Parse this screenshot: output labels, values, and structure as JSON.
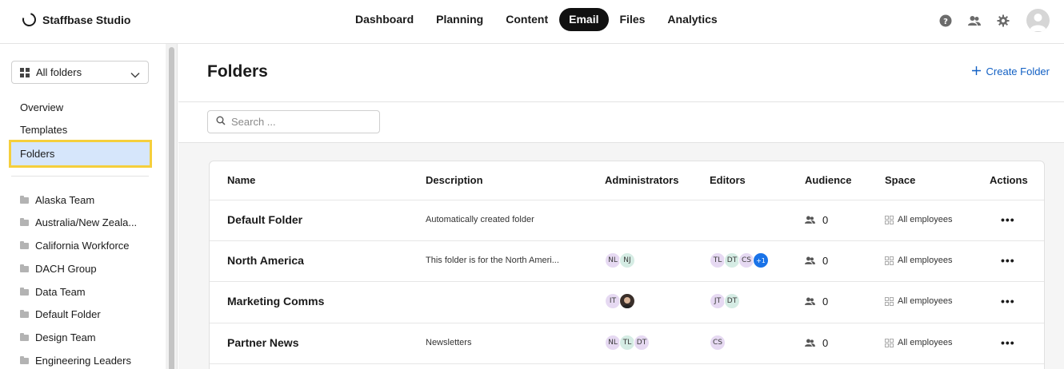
{
  "brand": {
    "name": "Staffbase Studio"
  },
  "nav": {
    "items": [
      {
        "label": "Dashboard",
        "active": false
      },
      {
        "label": "Planning",
        "active": false
      },
      {
        "label": "Content",
        "active": false
      },
      {
        "label": "Email",
        "active": true
      },
      {
        "label": "Files",
        "active": false
      },
      {
        "label": "Analytics",
        "active": false
      }
    ]
  },
  "top_icons": [
    "help-icon",
    "users-icon",
    "gear-icon",
    "avatar"
  ],
  "sidebar": {
    "folder_select": {
      "value": "All folders",
      "icon": "grid-icon"
    },
    "links": [
      "Overview",
      "Templates"
    ],
    "active_link": "Folders",
    "folders": [
      "Alaska Team",
      "Australia/New Zeala...",
      "California Workforce",
      "DACH Group",
      "Data Team",
      "Default Folder",
      "Design Team",
      "Engineering Leaders"
    ]
  },
  "main": {
    "title": "Folders",
    "create_button": "Create Folder",
    "search": {
      "placeholder": "Search ...",
      "value": ""
    },
    "table": {
      "columns": [
        "Name",
        "Description",
        "Administrators",
        "Editors",
        "Audience",
        "Space",
        "Actions"
      ],
      "rows": [
        {
          "name": "Default Folder",
          "description": "Automatically created folder",
          "administrators": [],
          "editors": [],
          "audience": "0",
          "space": "All employees"
        },
        {
          "name": "North America",
          "description": "This folder is for the North Ameri...",
          "administrators": [
            {
              "initials": "NL",
              "color": "purple"
            },
            {
              "initials": "NJ",
              "color": "green"
            }
          ],
          "editors": [
            {
              "initials": "TL",
              "color": "purple"
            },
            {
              "initials": "DT",
              "color": "green"
            },
            {
              "initials": "CS",
              "color": "purple"
            },
            {
              "initials": "+1",
              "color": "blue"
            }
          ],
          "audience": "0",
          "space": "All employees"
        },
        {
          "name": "Marketing Comms",
          "description": "",
          "administrators": [
            {
              "initials": "IT",
              "color": "purple"
            },
            {
              "initials": "",
              "color": "photo"
            }
          ],
          "editors": [
            {
              "initials": "JT",
              "color": "purple"
            },
            {
              "initials": "DT",
              "color": "green"
            }
          ],
          "audience": "0",
          "space": "All employees"
        },
        {
          "name": "Partner News",
          "description": "Newsletters",
          "administrators": [
            {
              "initials": "NL",
              "color": "purple"
            },
            {
              "initials": "TL",
              "color": "green"
            },
            {
              "initials": "DT",
              "color": "purple"
            }
          ],
          "editors": [
            {
              "initials": "CS",
              "color": "purple"
            }
          ],
          "audience": "0",
          "space": "All employees"
        }
      ],
      "actions_label": "•••"
    }
  },
  "colors": {
    "accent": "#1260c4",
    "active_nav": "#111111",
    "sidebar_active_bg": "#d6e6fb",
    "highlight_border": "#f5cf3c",
    "badge_blue": "#1a73e8"
  }
}
